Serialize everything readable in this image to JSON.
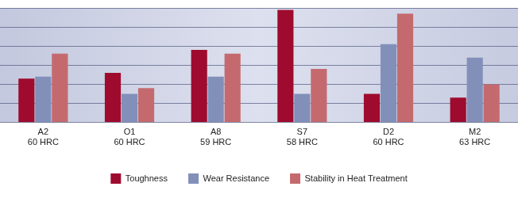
{
  "chart_data": {
    "type": "bar",
    "categories": [
      "A2\n60 HRC",
      "O1\n60 HRC",
      "A8\n59 HRC",
      "S7\n58 HRC",
      "D2\n60 HRC",
      "M2\n63 HRC"
    ],
    "series": [
      {
        "name": "Toughness",
        "color": "#9e0b2e",
        "values": [
          2.3,
          2.6,
          3.8,
          5.9,
          1.5,
          1.3
        ]
      },
      {
        "name": "Wear Resistance",
        "color": "#8290b9",
        "values": [
          2.4,
          1.5,
          2.4,
          1.5,
          4.1,
          3.4
        ]
      },
      {
        "name": "Stability in Heat Treatment",
        "color": "#c46a6e",
        "values": [
          3.6,
          1.8,
          3.6,
          2.8,
          5.7,
          2.0
        ]
      }
    ],
    "ylim": [
      0,
      6
    ],
    "yticks": [
      0,
      1,
      2,
      3,
      4,
      5,
      6
    ],
    "grid": true,
    "legend": "bottom",
    "tick_labels": "x"
  }
}
